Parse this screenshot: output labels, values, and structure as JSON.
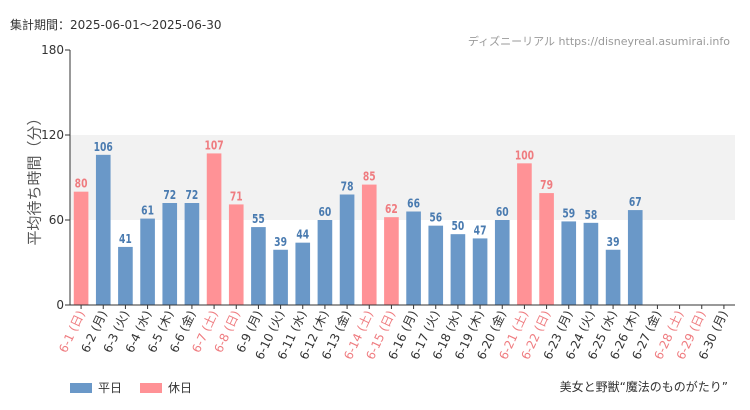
{
  "header": {
    "period": "集計期間：2025-06-01〜2025-06-30",
    "source": "ディズニーリアル https://disneyreal.asumirai.info"
  },
  "footer": {
    "attraction": "美女と野獣“魔法のものがたり”"
  },
  "colors": {
    "weekday": "#6a98c8",
    "holiday": "#ff9296",
    "holiday_label": "#ef7c80",
    "weekday_value": "#4a7bb0",
    "band": "#f2f2f2",
    "axis": "#333333"
  },
  "chart_data": {
    "type": "bar",
    "ylabel": "平均待ち時間（分）",
    "ylim": [
      0,
      180
    ],
    "yticks": [
      0,
      60,
      120,
      180
    ],
    "shaded_band": [
      60,
      120
    ],
    "grid": false,
    "legend_position": "bottom-left",
    "legend": [
      {
        "key": "weekday",
        "label": "平日"
      },
      {
        "key": "holiday",
        "label": "休日"
      }
    ],
    "categories": [
      "6-1 (日)",
      "6-2 (月)",
      "6-3 (火)",
      "6-4 (水)",
      "6-5 (木)",
      "6-6 (金)",
      "6-7 (土)",
      "6-8 (日)",
      "6-9 (月)",
      "6-10 (火)",
      "6-11 (水)",
      "6-12 (木)",
      "6-13 (金)",
      "6-14 (土)",
      "6-15 (日)",
      "6-16 (月)",
      "6-17 (火)",
      "6-18 (水)",
      "6-19 (木)",
      "6-20 (金)",
      "6-21 (土)",
      "6-22 (日)",
      "6-23 (月)",
      "6-24 (火)",
      "6-25 (水)",
      "6-26 (木)",
      "6-27 (金)",
      "6-28 (土)",
      "6-29 (日)",
      "6-30 (月)"
    ],
    "day_types": [
      "holiday",
      "weekday",
      "weekday",
      "weekday",
      "weekday",
      "weekday",
      "holiday",
      "holiday",
      "weekday",
      "weekday",
      "weekday",
      "weekday",
      "weekday",
      "holiday",
      "holiday",
      "weekday",
      "weekday",
      "weekday",
      "weekday",
      "weekday",
      "holiday",
      "holiday",
      "weekday",
      "weekday",
      "weekday",
      "weekday",
      "weekday",
      "holiday",
      "holiday",
      "weekday"
    ],
    "values": [
      80,
      106,
      41,
      61,
      72,
      72,
      107,
      71,
      55,
      39,
      44,
      60,
      78,
      85,
      62,
      66,
      56,
      50,
      47,
      60,
      100,
      79,
      59,
      58,
      39,
      67,
      null,
      null,
      null,
      null
    ]
  }
}
